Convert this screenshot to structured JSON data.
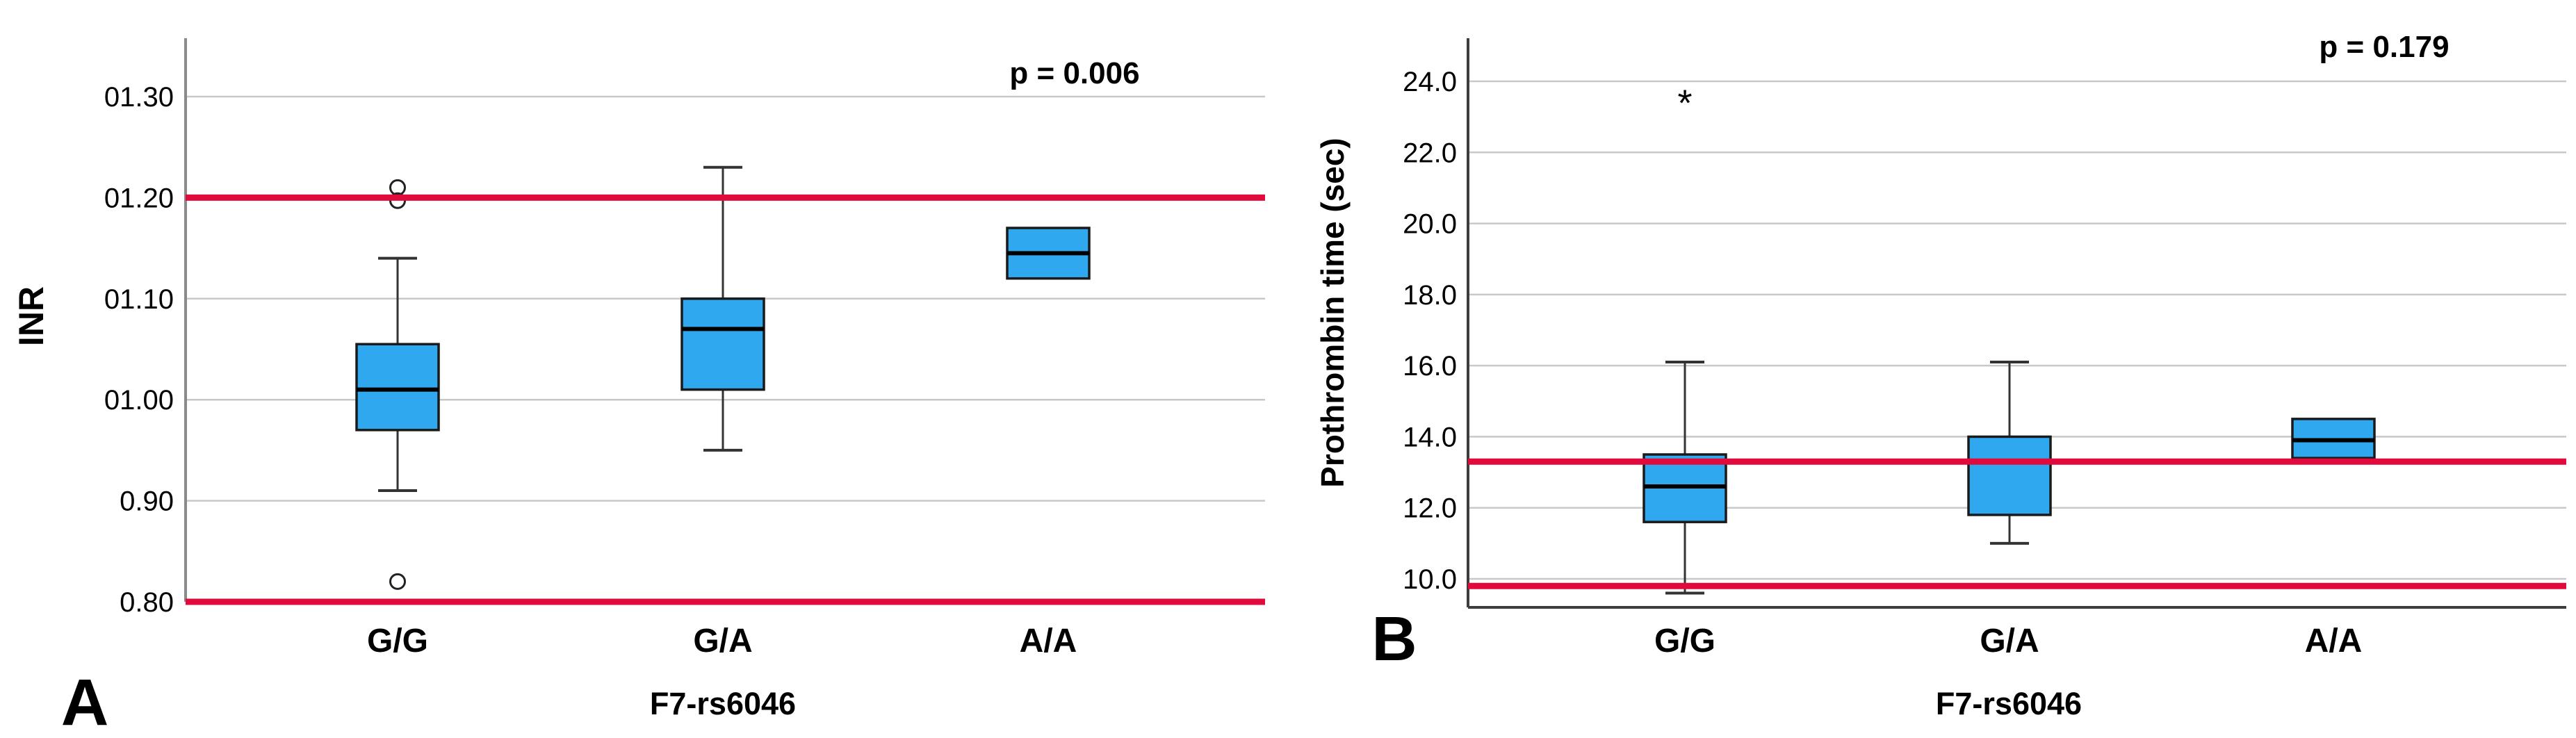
{
  "figure_title": "",
  "colors": {
    "box_fill": "#2FA8F0",
    "box_border": "#1a1a1a",
    "median_line": "#000000",
    "whisker": "#333333",
    "reference_line": "#E00A3C",
    "gridline": "#c8c8c8",
    "axis_panel_a": "#8a8a8a",
    "axis_panel_b": "#3d3d3d",
    "panel_label": "#7B3F9B",
    "text": "#000000"
  },
  "chart_data": [
    {
      "type": "box",
      "panel_label": "A",
      "p_text": "p = 0.006",
      "xlabel": "F7-rs6046",
      "ylabel": "INR",
      "categories": [
        "G/G",
        "G/A",
        "A/A"
      ],
      "ylim": [
        0.78,
        1.36
      ],
      "ytick_values": [
        1.3,
        1.2,
        1.1,
        1.0,
        0.9,
        0.8
      ],
      "ytick_labels": [
        "01.30",
        "01.20",
        "01.10",
        "01.00",
        "0.90",
        "0.80"
      ],
      "reference_lines": [
        1.2,
        0.8
      ],
      "grid": true,
      "legend": false,
      "series": [
        {
          "category": "G/G",
          "whisker_low": 0.91,
          "q1": 0.97,
          "median": 1.01,
          "q3": 1.055,
          "whisker_high": 1.14,
          "outliers_circle": [
            1.21,
            1.197,
            0.82
          ],
          "outliers_star": []
        },
        {
          "category": "G/A",
          "whisker_low": 0.95,
          "q1": 1.01,
          "median": 1.07,
          "q3": 1.1,
          "whisker_high": 1.23,
          "outliers_circle": [],
          "outliers_star": []
        },
        {
          "category": "A/A",
          "whisker_low": null,
          "q1": 1.12,
          "median": 1.145,
          "q3": 1.17,
          "whisker_high": null,
          "outliers_circle": [],
          "outliers_star": []
        }
      ]
    },
    {
      "type": "box",
      "panel_label": "B",
      "p_text": "p = 0.179",
      "xlabel": "F7-rs6046",
      "ylabel": "Prothrombin time (sec)",
      "categories": [
        "G/G",
        "G/A",
        "A/A"
      ],
      "ylim": [
        9.0,
        25.2
      ],
      "ytick_values": [
        24.0,
        22.0,
        20.0,
        18.0,
        16.0,
        14.0,
        12.0,
        10.0
      ],
      "ytick_labels": [
        "24.0",
        "22.0",
        "20.0",
        "18.0",
        "16.0",
        "14.0",
        "12.0",
        "10.0"
      ],
      "reference_lines": [
        13.3,
        9.8
      ],
      "grid": true,
      "legend": false,
      "series": [
        {
          "category": "G/G",
          "whisker_low": 9.6,
          "q1": 11.6,
          "median": 12.6,
          "q3": 13.5,
          "whisker_high": 16.1,
          "outliers_circle": [],
          "outliers_star": [
            23.4
          ]
        },
        {
          "category": "G/A",
          "whisker_low": 11.0,
          "q1": 11.8,
          "median": 13.3,
          "q3": 14.0,
          "whisker_high": 16.1,
          "outliers_circle": [],
          "outliers_star": []
        },
        {
          "category": "A/A",
          "whisker_low": null,
          "q1": 13.4,
          "median": 13.9,
          "q3": 14.5,
          "whisker_high": null,
          "outliers_circle": [],
          "outliers_star": []
        }
      ]
    }
  ]
}
